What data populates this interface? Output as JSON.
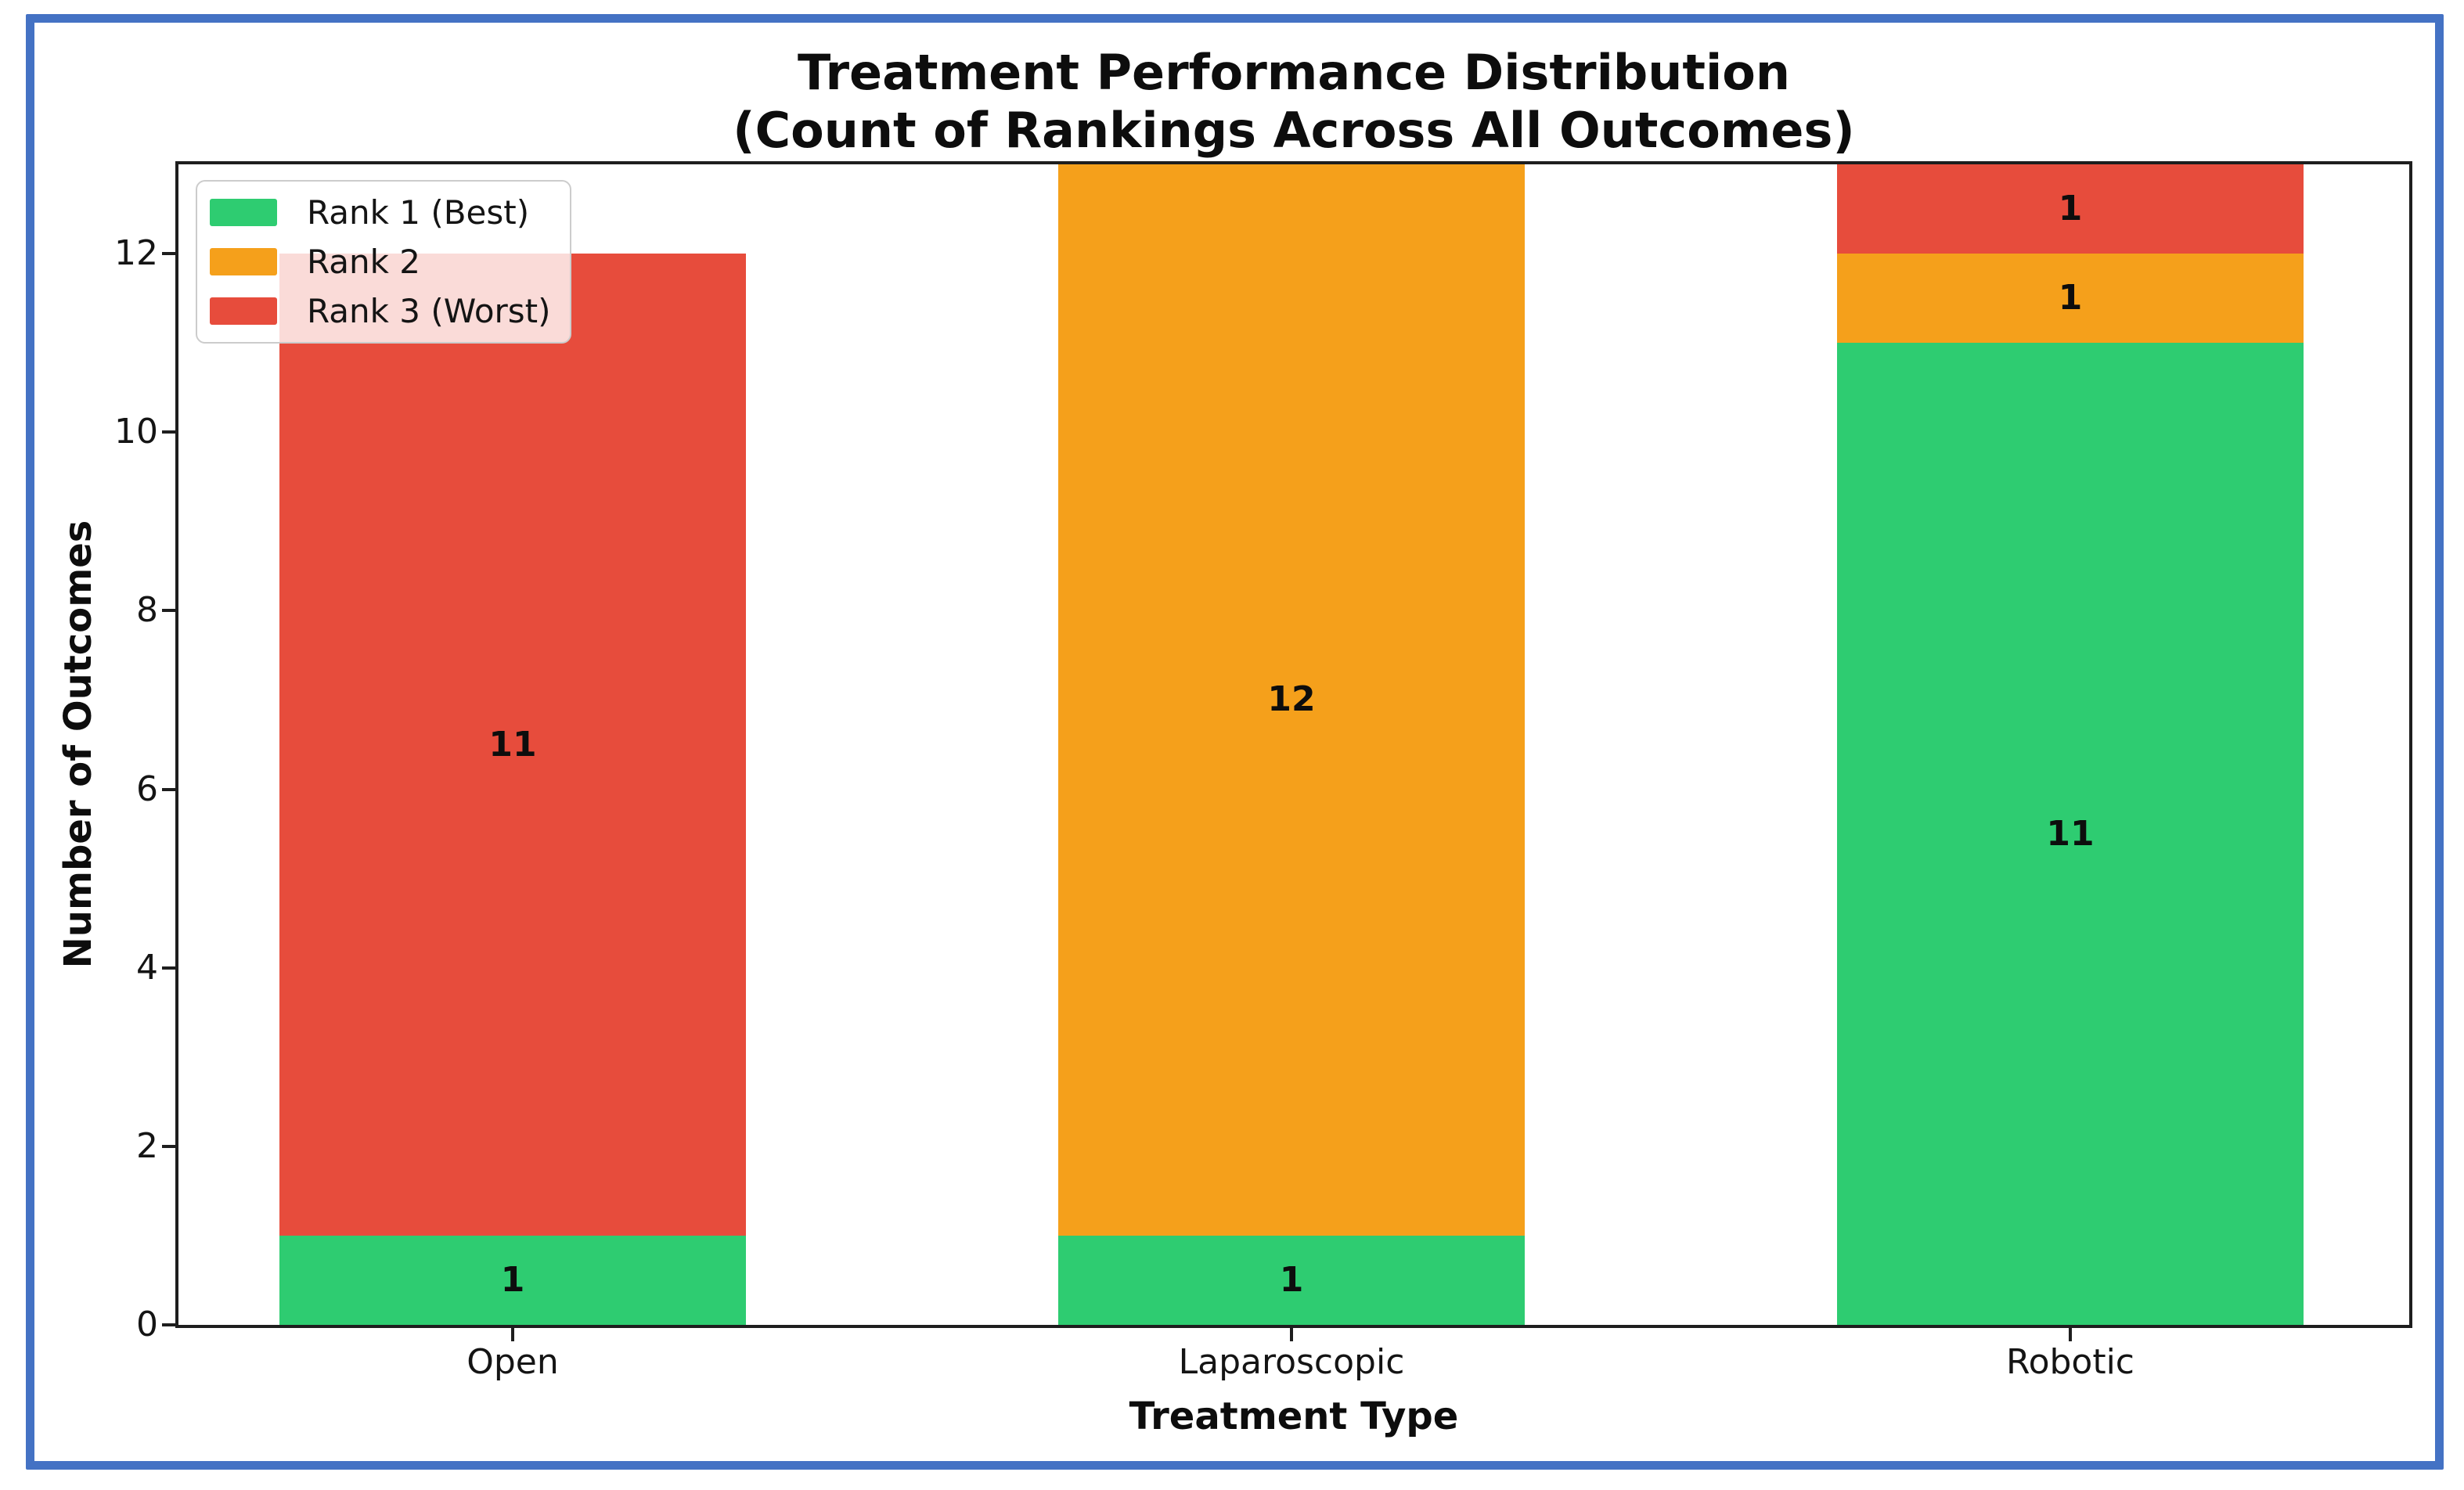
{
  "title": {
    "line1": "Treatment Performance Distribution",
    "line2": "(Count of Rankings Across All Outcomes)"
  },
  "chart_data": {
    "type": "bar",
    "stacked": true,
    "title": "Treatment Performance Distribution (Count of Rankings Across All Outcomes)",
    "categories": [
      "Open",
      "Laparoscopic",
      "Robotic"
    ],
    "series": [
      {
        "name": "Rank 1 (Best)",
        "color": "#2ecc71",
        "values": [
          1,
          1,
          11
        ]
      },
      {
        "name": "Rank 2",
        "color": "#f5a01b",
        "values": [
          0,
          12,
          1
        ]
      },
      {
        "name": "Rank 3 (Worst)",
        "color": "#e74c3c",
        "values": [
          11,
          0,
          1
        ]
      }
    ],
    "totals": [
      12,
      13,
      13
    ],
    "bar_value_labels": true,
    "xlabel": "Treatment Type",
    "ylabel": "Number of Outcomes",
    "ylim": [
      0,
      13
    ],
    "yticks": [
      0,
      2,
      4,
      6,
      8,
      10,
      12
    ],
    "grid": false,
    "legend_position": "upper left"
  },
  "colors": {
    "frame_border": "#4472c4",
    "spine": "#1e1e1e",
    "background": "#ffffff"
  }
}
